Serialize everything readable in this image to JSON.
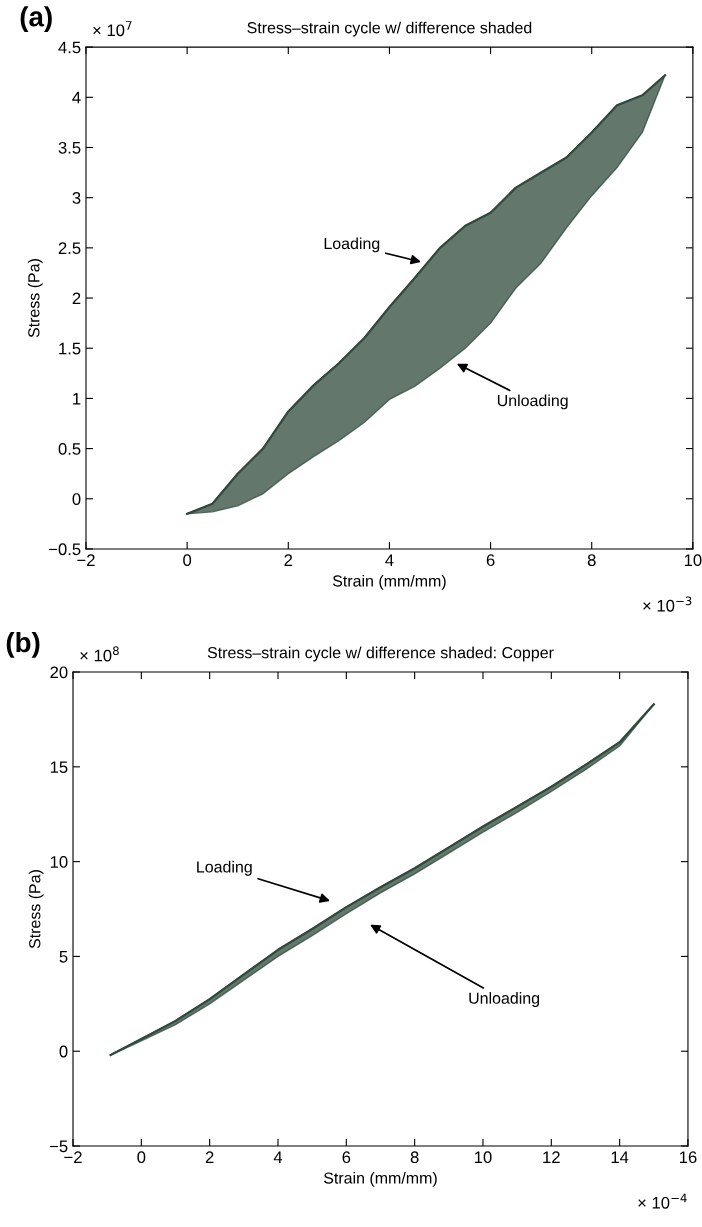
{
  "chart_data": [
    {
      "type": "line",
      "title": "Stress–strain cycle w/ difference shaded",
      "xlabel": "Strain (mm/mm)",
      "ylabel": "Stress (Pa)",
      "x": [
        0,
        0.5,
        1,
        1.5,
        2,
        2.5,
        3,
        3.5,
        4,
        4.5,
        5,
        5.5,
        6,
        6.5,
        7,
        7.5,
        8,
        8.5,
        9,
        9.45
      ],
      "series": [
        {
          "color": "#2f4a3c",
          "values": [
            -0.15,
            -0.05,
            0.25,
            0.5,
            0.87,
            1.13,
            1.35,
            1.6,
            1.91,
            2.2,
            2.5,
            2.72,
            2.85,
            3.1,
            3.25,
            3.4,
            3.65,
            3.92,
            4.02,
            4.22
          ],
          "upper": [
            -0.15,
            -0.05,
            0.25,
            0.5,
            0.87,
            1.13,
            1.35,
            1.6,
            1.91,
            2.2,
            2.5,
            2.72,
            2.85,
            3.1,
            3.25,
            3.4,
            3.65,
            3.92,
            4.02,
            4.22
          ],
          "lower": [
            -0.15,
            -0.13,
            -0.07,
            0.05,
            0.25,
            0.42,
            0.58,
            0.76,
            0.99,
            1.12,
            1.3,
            1.5,
            1.75,
            2.1,
            2.35,
            2.7,
            3.02,
            3.3,
            3.65,
            4.22
          ]
        }
      ],
      "xlim": [
        -2,
        10
      ],
      "xticks": [
        {
          "value": -2,
          "label": "−2"
        },
        0,
        2,
        4,
        6,
        8,
        10
      ],
      "ylim": [
        -0.5,
        4.5
      ],
      "yticks": [
        {
          "value": -0.5,
          "label": "−0.5"
        },
        0,
        0.5,
        1,
        1.5,
        2,
        2.5,
        3,
        3.5,
        4,
        4.5
      ],
      "grid": false,
      "annotations": [
        "(a)",
        "× 10$^{7}$",
        "× 10$^{−3}$",
        "Loading",
        "Unloading"
      ]
    },
    {
      "type": "line",
      "title": "Stress–strain cycle w/ difference shaded: Copper",
      "xlabel": "Strain (mm/mm)",
      "ylabel": "Stress (Pa)",
      "x": [
        -0.9,
        0,
        1,
        2,
        3,
        4,
        5,
        6,
        7,
        8,
        9,
        10,
        11,
        12,
        13,
        14,
        15
      ],
      "series": [
        {
          "color": "#2f4a3c",
          "values": [
            -0.2,
            0.65,
            1.6,
            2.75,
            4.05,
            5.35,
            6.45,
            7.6,
            8.65,
            9.65,
            10.75,
            11.85,
            12.9,
            13.95,
            15.1,
            16.3,
            18.3
          ],
          "upper": [
            -0.2,
            0.65,
            1.6,
            2.75,
            4.05,
            5.35,
            6.45,
            7.6,
            8.65,
            9.65,
            10.75,
            11.85,
            12.9,
            13.95,
            15.1,
            16.3,
            18.3
          ],
          "lower": [
            -0.2,
            0.55,
            1.4,
            2.5,
            3.75,
            5.0,
            6.1,
            7.25,
            8.35,
            9.35,
            10.45,
            11.55,
            12.6,
            13.7,
            14.85,
            16.1,
            18.3
          ]
        }
      ],
      "xlim": [
        -2,
        16
      ],
      "xticks": [
        {
          "value": -2,
          "label": "−2"
        },
        0,
        2,
        4,
        6,
        8,
        10,
        12,
        14,
        16
      ],
      "ylim": [
        -5,
        20
      ],
      "yticks": [
        {
          "value": -5,
          "label": "−5"
        },
        0,
        5,
        10,
        15,
        20
      ],
      "grid": false,
      "annotations": [
        "(b)",
        "× 10$^{8}$",
        "× 10$^{−4}$",
        "Loading",
        "Unloading"
      ]
    }
  ]
}
